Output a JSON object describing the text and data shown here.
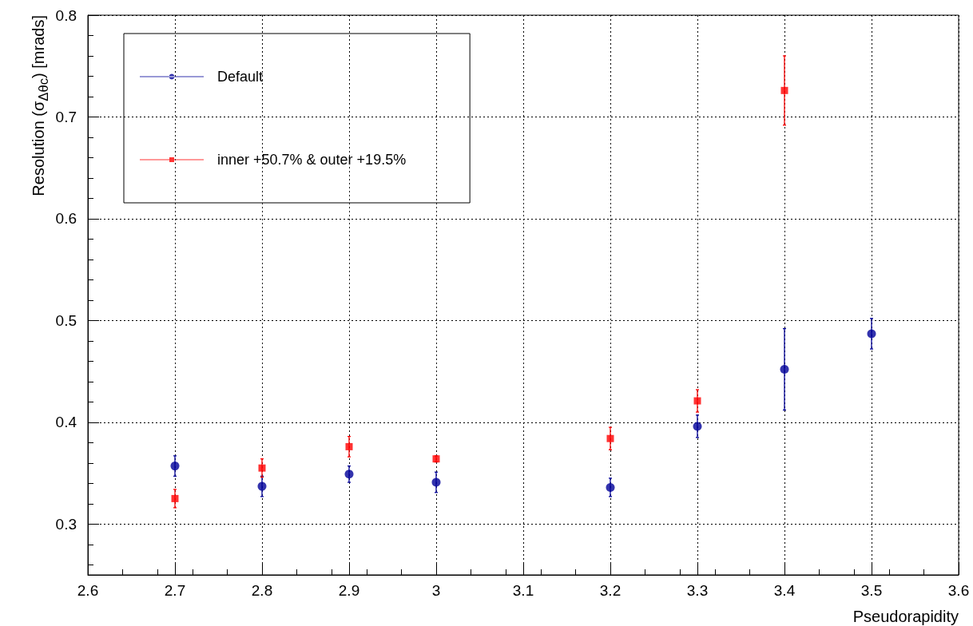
{
  "chart_data": {
    "type": "scatter",
    "xlabel": "Pseudorapidity",
    "ylabel": "Resolution (σ$_{Δθc}$) [mrads]",
    "xlim": [
      2.6,
      3.6
    ],
    "xticks": [
      2.6,
      2.7,
      2.8,
      2.9,
      3,
      3.1,
      3.2,
      3.3,
      3.4,
      3.5,
      3.6
    ],
    "ylim": [
      0.25,
      0.8
    ],
    "yticks": [
      0.3,
      0.4,
      0.5,
      0.6,
      0.7,
      0.8
    ],
    "grid": true,
    "legend": "top left",
    "marker": "circle",
    "series": [
      {
        "name": "Default",
        "color": "#000099",
        "x": [
          2.7,
          2.8,
          2.9,
          3.0,
          3.2,
          3.3,
          3.4,
          3.5
        ],
        "values": [
          0.357,
          0.337,
          0.349,
          0.341,
          0.336,
          0.396,
          0.452,
          0.487
        ],
        "errors": [
          0.01,
          0.01,
          0.008,
          0.01,
          0.009,
          0.011,
          0.04,
          0.015
        ]
      },
      {
        "name": "inner +50.7% & outer +19.5%",
        "color": "#ff0000",
        "marker": "square",
        "x": [
          2.7,
          2.8,
          2.9,
          3.0,
          3.2,
          3.3,
          3.4
        ],
        "values": [
          0.325,
          0.355,
          0.376,
          0.364,
          0.384,
          0.421,
          0.726
        ],
        "errors": [
          0.009,
          0.009,
          0.01,
          0.003,
          0.011,
          0.011,
          0.034
        ]
      }
    ]
  }
}
